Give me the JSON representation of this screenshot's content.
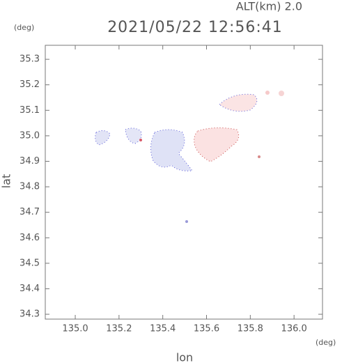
{
  "chart_data": {
    "type": "map",
    "title": "2021/05/22 12:56:41",
    "altitude_label": "ALT(km) 2.0",
    "y_unit": "(deg)",
    "x_unit": "(deg)",
    "xlabel": "lon",
    "ylabel": "lat",
    "xlim": [
      134.863,
      136.13
    ],
    "ylim": [
      34.281,
      35.355
    ],
    "xticks": [
      {
        "value": 135,
        "label": "135.0"
      },
      135.2,
      135.4,
      135.6,
      135.8,
      {
        "value": 136,
        "label": "136.0"
      }
    ],
    "yticks": [
      34.3,
      34.4,
      34.5,
      34.6,
      34.7,
      34.8,
      34.9,
      {
        "value": 35,
        "label": "35.0"
      },
      35.1,
      35.2,
      35.3
    ]
  }
}
